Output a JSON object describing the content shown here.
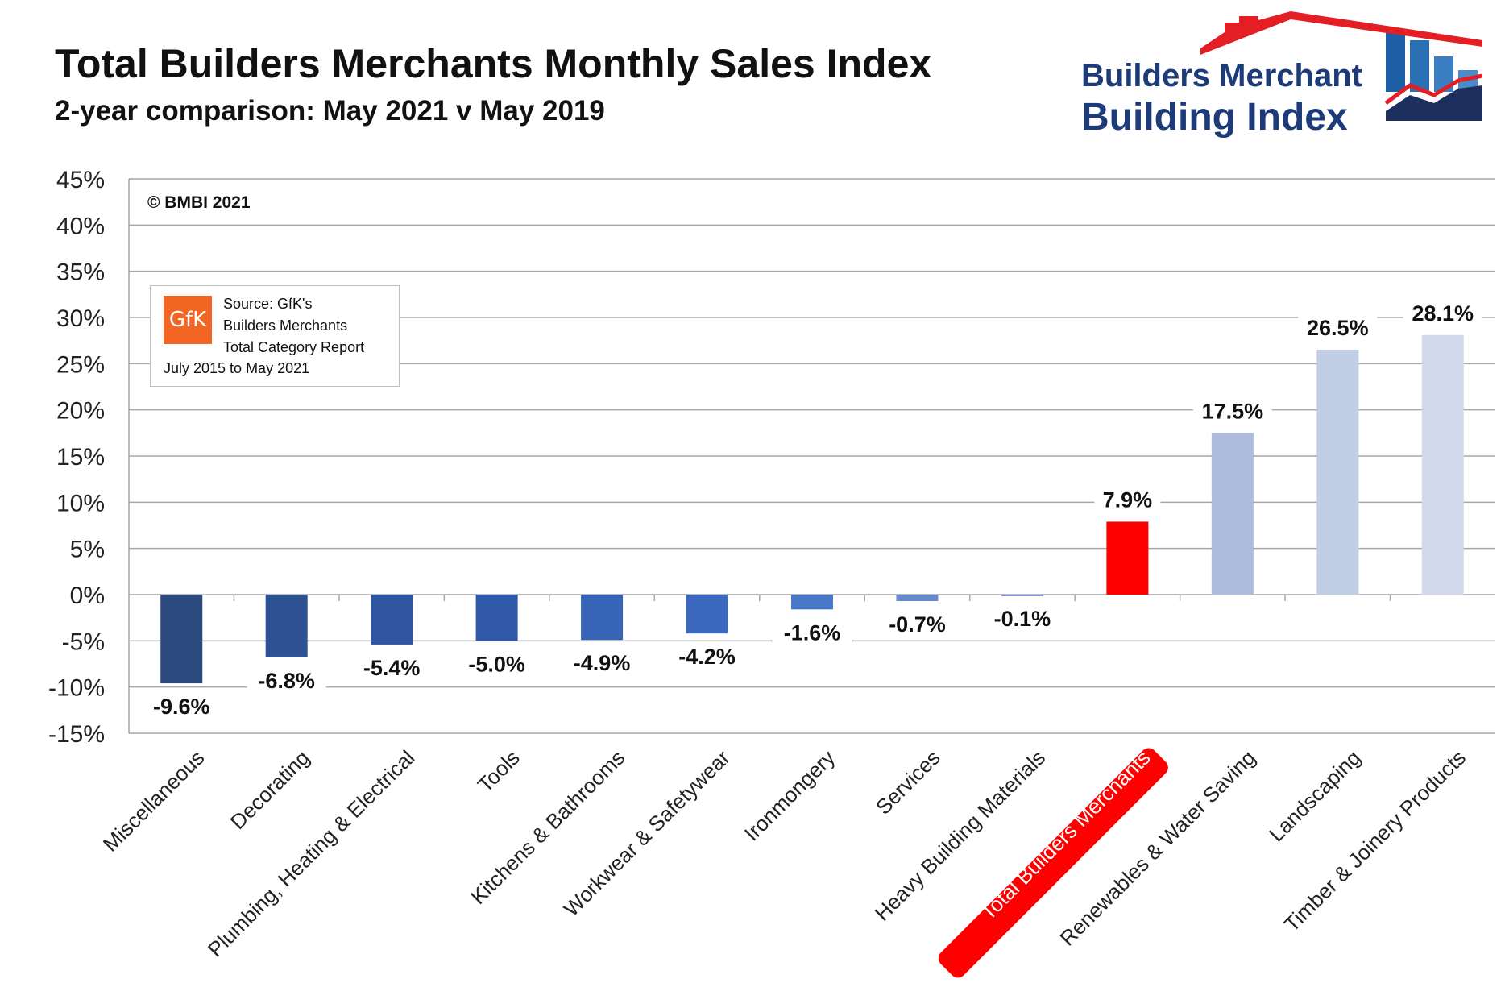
{
  "header": {
    "title": "Total Builders Merchants Monthly Sales Index",
    "subtitle": "2-year comparison: May 2021 v May 2019"
  },
  "logo": {
    "line1": "Builders Merchant",
    "line2": "Building Index"
  },
  "copyright": "© BMBI 2021",
  "source": {
    "gfk_label": "GfK",
    "line1": "Source: GfK's",
    "line2": "Builders Merchants",
    "line3": "Total Category Report",
    "line4": "July 2015 to May 2021"
  },
  "colors": {
    "highlight": "#ff0000",
    "logo_blue": "#1c3b78",
    "logo_red": "#e31e24",
    "gfk_orange": "#f26522"
  },
  "chart_data": {
    "type": "bar",
    "ylim": [
      -15,
      45
    ],
    "y_ticks": [
      "45%",
      "40%",
      "35%",
      "30%",
      "25%",
      "20%",
      "15%",
      "10%",
      "5%",
      "0%",
      "-5%",
      "-10%",
      "-15%"
    ],
    "grid": true,
    "highlight_category": "Total Builders Merchants",
    "categories": [
      "Miscellaneous",
      "Decorating",
      "Plumbing, Heating & Electrical",
      "Tools",
      "Kitchens & Bathrooms",
      "Workwear & Safetywear",
      "Ironmongery",
      "Services",
      "Heavy Building Materials",
      "Total Builders Merchants",
      "Renewables & Water Saving",
      "Landscaping",
      "Timber & Joinery Products"
    ],
    "values": [
      -9.6,
      -6.8,
      -5.4,
      -5.0,
      -4.9,
      -4.2,
      -1.6,
      -0.7,
      -0.1,
      7.9,
      17.5,
      26.5,
      28.1
    ],
    "data_labels": [
      "-9.6%",
      "-6.8%",
      "-5.4%",
      "-5.0%",
      "-4.9%",
      "-4.2%",
      "-1.6%",
      "-0.7%",
      "-0.1%",
      "7.9%",
      "17.5%",
      "26.5%",
      "28.1%"
    ],
    "bar_colors": [
      "#2c4a7e",
      "#2e5191",
      "#2f559e",
      "#2f59a8",
      "#3763b6",
      "#3c69be",
      "#4a77c7",
      "#6688cc",
      "#7b96d2",
      "#ff0000",
      "#adbcdc",
      "#c2cde6",
      "#d3daee"
    ]
  }
}
